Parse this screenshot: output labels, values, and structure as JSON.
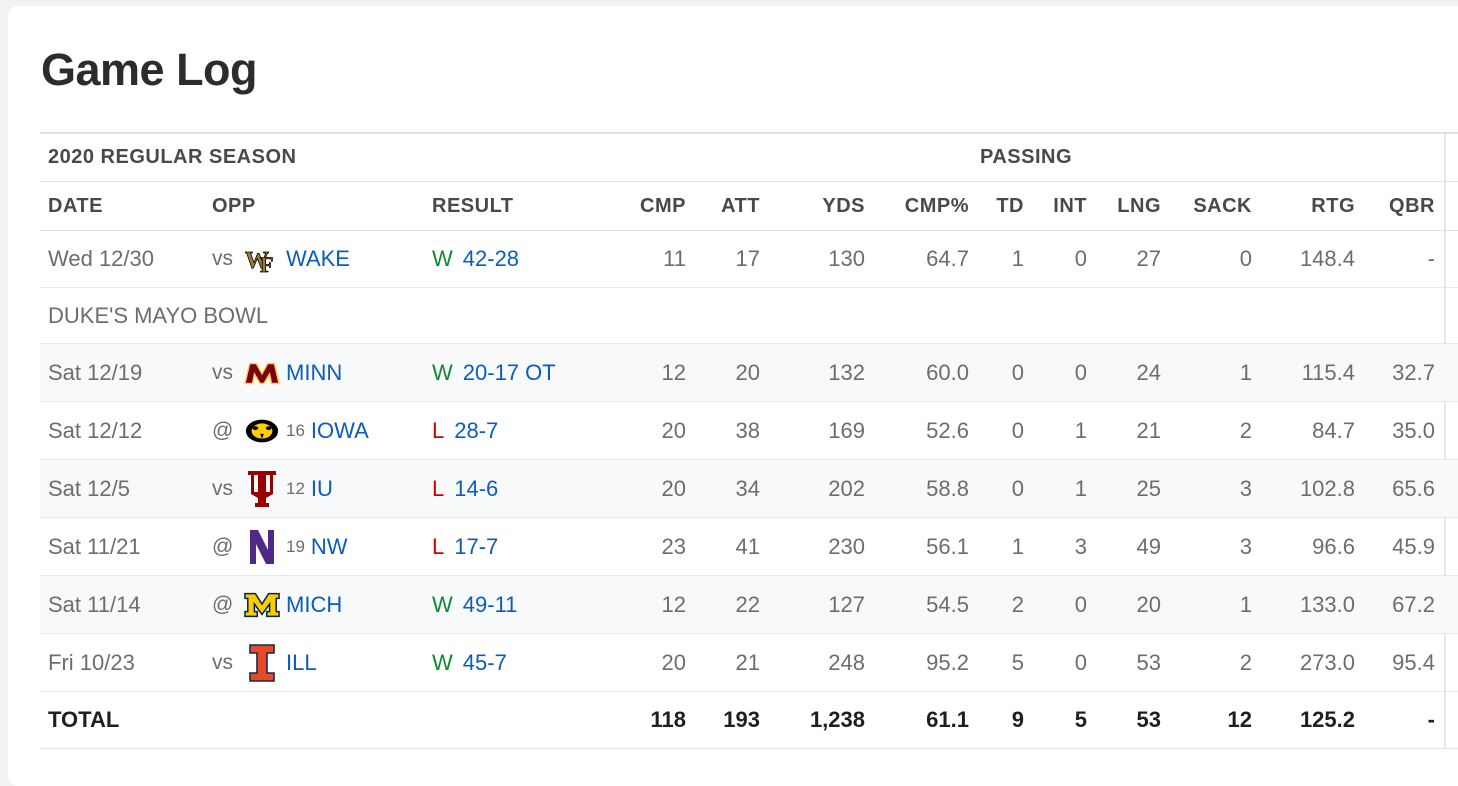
{
  "title": "Game Log",
  "season_label": "2020 REGULAR SEASON",
  "group_label": "PASSING",
  "columns": {
    "date": "DATE",
    "opp": "OPP",
    "result": "RESULT",
    "cmp": "CMP",
    "att": "ATT",
    "yds": "YDS",
    "pct": "CMP%",
    "td": "TD",
    "int": "INT",
    "lng": "LNG",
    "sack": "SACK",
    "rtg": "RTG",
    "qbr": "QBR"
  },
  "colors": {
    "win": "#0d8a2f",
    "loss": "#d00000",
    "link": "#0a5cbf"
  },
  "games": [
    {
      "date": "Wed 12/30",
      "ha": "vs",
      "logo": "wake-forest-logo",
      "rank": "",
      "team": "WAKE",
      "wl": "W",
      "score": "42-28",
      "cmp": "11",
      "att": "17",
      "yds": "130",
      "pct": "64.7",
      "td": "1",
      "int": "0",
      "lng": "27",
      "sack": "0",
      "rtg": "148.4",
      "qbr": "-"
    },
    {
      "date": "Sat 12/19",
      "ha": "vs",
      "logo": "minnesota-logo",
      "rank": "",
      "team": "MINN",
      "wl": "W",
      "score": "20-17 OT",
      "cmp": "12",
      "att": "20",
      "yds": "132",
      "pct": "60.0",
      "td": "0",
      "int": "0",
      "lng": "24",
      "sack": "1",
      "rtg": "115.4",
      "qbr": "32.7"
    },
    {
      "date": "Sat 12/12",
      "ha": "@",
      "logo": "iowa-logo",
      "rank": "16",
      "team": "IOWA",
      "wl": "L",
      "score": "28-7",
      "cmp": "20",
      "att": "38",
      "yds": "169",
      "pct": "52.6",
      "td": "0",
      "int": "1",
      "lng": "21",
      "sack": "2",
      "rtg": "84.7",
      "qbr": "35.0"
    },
    {
      "date": "Sat 12/5",
      "ha": "vs",
      "logo": "indiana-logo",
      "rank": "12",
      "team": "IU",
      "wl": "L",
      "score": "14-6",
      "cmp": "20",
      "att": "34",
      "yds": "202",
      "pct": "58.8",
      "td": "0",
      "int": "1",
      "lng": "25",
      "sack": "3",
      "rtg": "102.8",
      "qbr": "65.6"
    },
    {
      "date": "Sat 11/21",
      "ha": "@",
      "logo": "northwestern-logo",
      "rank": "19",
      "team": "NW",
      "wl": "L",
      "score": "17-7",
      "cmp": "23",
      "att": "41",
      "yds": "230",
      "pct": "56.1",
      "td": "1",
      "int": "3",
      "lng": "49",
      "sack": "3",
      "rtg": "96.6",
      "qbr": "45.9"
    },
    {
      "date": "Sat 11/14",
      "ha": "@",
      "logo": "michigan-logo",
      "rank": "",
      "team": "MICH",
      "wl": "W",
      "score": "49-11",
      "cmp": "12",
      "att": "22",
      "yds": "127",
      "pct": "54.5",
      "td": "2",
      "int": "0",
      "lng": "20",
      "sack": "1",
      "rtg": "133.0",
      "qbr": "67.2"
    },
    {
      "date": "Fri 10/23",
      "ha": "vs",
      "logo": "illinois-logo",
      "rank": "",
      "team": "ILL",
      "wl": "W",
      "score": "45-7",
      "cmp": "20",
      "att": "21",
      "yds": "248",
      "pct": "95.2",
      "td": "5",
      "int": "0",
      "lng": "53",
      "sack": "2",
      "rtg": "273.0",
      "qbr": "95.4"
    }
  ],
  "bowl_label": "DUKE'S MAYO BOWL",
  "total": {
    "label": "TOTAL",
    "cmp": "118",
    "att": "193",
    "yds": "1,238",
    "pct": "61.1",
    "td": "9",
    "int": "5",
    "lng": "53",
    "sack": "12",
    "rtg": "125.2",
    "qbr": "-"
  }
}
